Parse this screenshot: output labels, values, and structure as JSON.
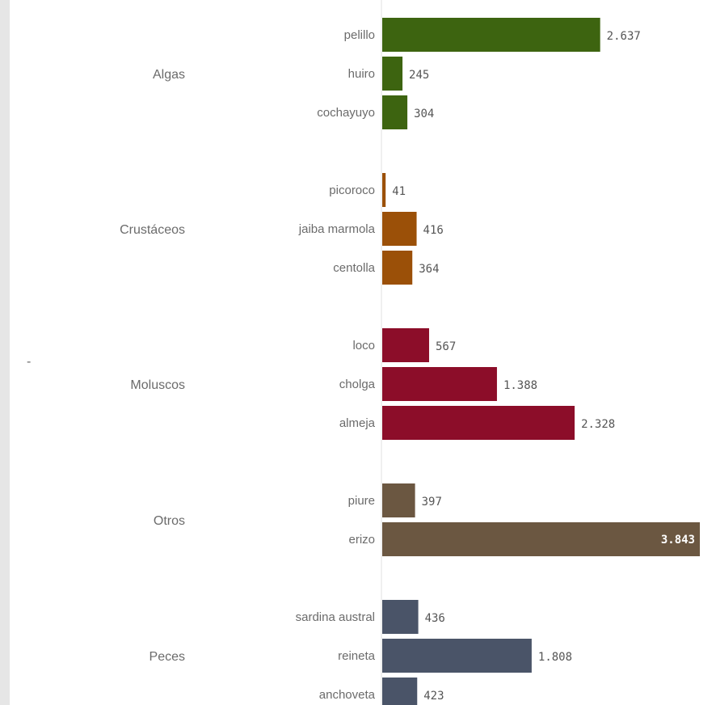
{
  "chart_data": {
    "type": "bar",
    "orientation": "horizontal",
    "xlim": [
      0,
      3843
    ],
    "group_axis_label": "-",
    "groups": [
      {
        "name": "Algas",
        "color": "#3d6410",
        "items": [
          {
            "label": "pelillo",
            "value": 2637,
            "display": "2.637"
          },
          {
            "label": "huiro",
            "value": 245,
            "display": "245"
          },
          {
            "label": "cochayuyo",
            "value": 304,
            "display": "304"
          }
        ]
      },
      {
        "name": "Crustáceos",
        "color": "#9b5008",
        "items": [
          {
            "label": "picoroco",
            "value": 41,
            "display": "41"
          },
          {
            "label": "jaiba marmola",
            "value": 416,
            "display": "416"
          },
          {
            "label": "centolla",
            "value": 364,
            "display": "364"
          }
        ]
      },
      {
        "name": "Moluscos",
        "color": "#8c0d29",
        "items": [
          {
            "label": "loco",
            "value": 567,
            "display": "567"
          },
          {
            "label": "cholga",
            "value": 1388,
            "display": "1.388"
          },
          {
            "label": "almeja",
            "value": 2328,
            "display": "2.328"
          }
        ]
      },
      {
        "name": "Otros",
        "color": "#6b5741",
        "items": [
          {
            "label": "piure",
            "value": 397,
            "display": "397"
          },
          {
            "label": "erizo",
            "value": 3843,
            "display": "3.843"
          }
        ]
      },
      {
        "name": "Peces",
        "color": "#4a5468",
        "items": [
          {
            "label": "sardina austral",
            "value": 436,
            "display": "436"
          },
          {
            "label": "reineta",
            "value": 1808,
            "display": "1.808"
          },
          {
            "label": "anchoveta",
            "value": 423,
            "display": "423"
          }
        ]
      }
    ]
  }
}
